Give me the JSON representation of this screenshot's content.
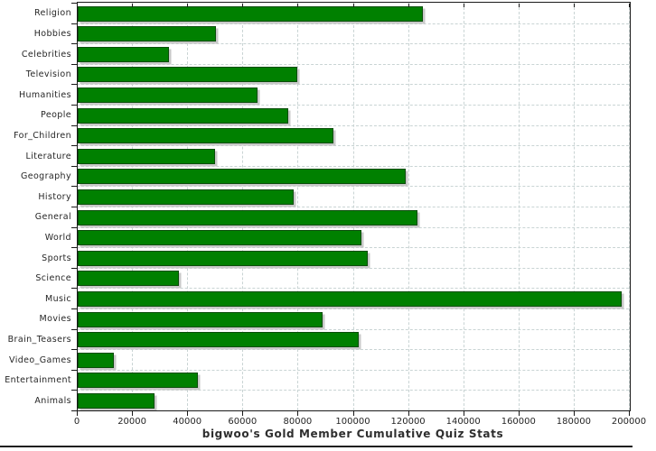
{
  "chart_data": {
    "type": "bar",
    "orientation": "horizontal",
    "title": "bigwoo's Gold Member Cumulative Quiz Stats",
    "categories": [
      "Religion",
      "Hobbies",
      "Celebrities",
      "Television",
      "Humanities",
      "People",
      "For_Children",
      "Literature",
      "Geography",
      "History",
      "General",
      "World",
      "Sports",
      "Science",
      "Music",
      "Movies",
      "Brain_Teasers",
      "Video_Games",
      "Entertainment",
      "Animals"
    ],
    "values": [
      125500,
      50500,
      33500,
      80000,
      65500,
      76500,
      93000,
      50000,
      119000,
      78500,
      123500,
      103000,
      105500,
      37000,
      197500,
      89000,
      102000,
      13500,
      44000,
      28000
    ],
    "xlabel": "",
    "ylabel": "",
    "xlim": [
      0,
      200000
    ],
    "x_tick_step": 20000,
    "x_tick_labels": [
      "0",
      "20000",
      "40000",
      "60000",
      "80000",
      "100000",
      "120000",
      "140000",
      "160000",
      "180000",
      "200000"
    ],
    "grid": "dashed",
    "legend": "none",
    "colors": {
      "bar": "#008000",
      "bar_outline": "#0a4d0a",
      "bar_shadow": "#c9c9c9",
      "grid": "#c9d4d4",
      "axis": "#1a1a1a",
      "text": "#262626"
    }
  }
}
